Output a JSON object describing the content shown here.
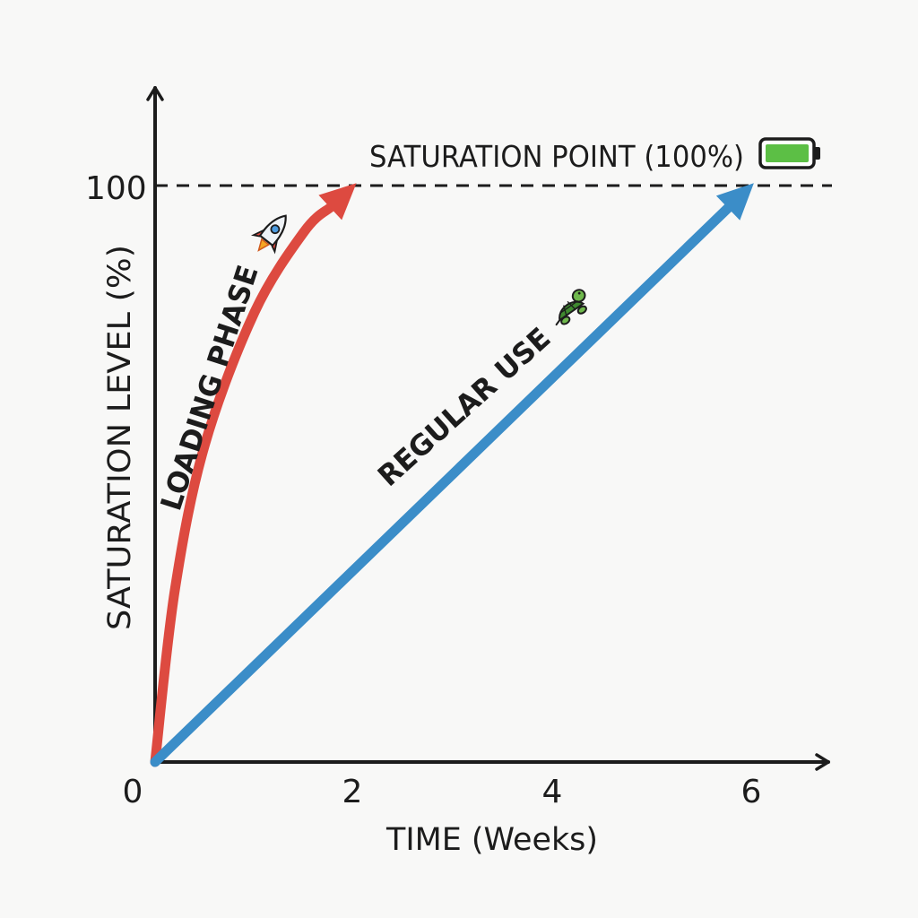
{
  "chart_data": {
    "type": "line",
    "title": "",
    "xlabel": "TIME (Weeks)",
    "ylabel": "SATURATION LEVEL (%)",
    "xlim": [
      0,
      6
    ],
    "ylim": [
      0,
      100
    ],
    "x_ticks": [
      "0",
      "2",
      "4",
      "6"
    ],
    "y_ticks": [
      "100"
    ],
    "grid": false,
    "series": [
      {
        "name": "LOADING PHASE",
        "color": "#dd4a40",
        "icon": "rocket-icon",
        "x": [
          0,
          0.2,
          0.5,
          1.0,
          1.5,
          2.0
        ],
        "y": [
          0,
          30,
          55,
          78,
          92,
          100
        ]
      },
      {
        "name": "REGULAR USE",
        "color": "#3b8dc8",
        "icon": "turtle-icon",
        "x": [
          0,
          6
        ],
        "y": [
          0,
          100
        ]
      }
    ],
    "annotations": [
      {
        "text": "SATURATION POINT (100%)",
        "y": 100,
        "style": "dashed",
        "icon": "full-battery-icon",
        "battery_color": "#5cbf45"
      }
    ]
  }
}
